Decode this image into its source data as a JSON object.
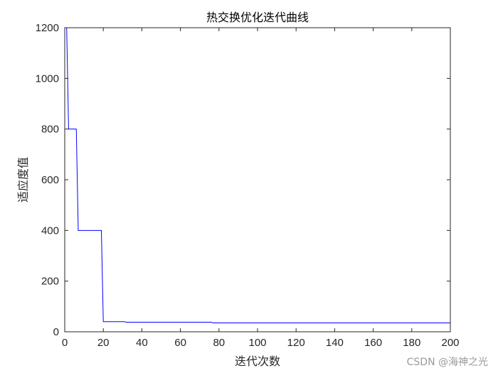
{
  "chart_data": {
    "type": "line",
    "title": "热交换优化迭代曲线",
    "xlabel": "迭代次数",
    "ylabel": "适应度值",
    "xlim": [
      0,
      200
    ],
    "ylim": [
      0,
      1200
    ],
    "xticks": [
      0,
      20,
      40,
      60,
      80,
      100,
      120,
      140,
      160,
      180,
      200
    ],
    "yticks": [
      0,
      200,
      400,
      600,
      800,
      1000,
      1200
    ],
    "step": true,
    "grid": false,
    "legend": "none",
    "series": [
      {
        "color": "#0000ff",
        "x": [
          1,
          2,
          6,
          7,
          19,
          20,
          31,
          32,
          76,
          77,
          200
        ],
        "y": [
          1200,
          800,
          800,
          400,
          400,
          40,
          40,
          38,
          38,
          35,
          35
        ]
      }
    ]
  },
  "watermark": "CSDN @海神之光",
  "colors": {
    "axis": "#262626",
    "series": "#0000ff",
    "background": "#ffffff"
  }
}
